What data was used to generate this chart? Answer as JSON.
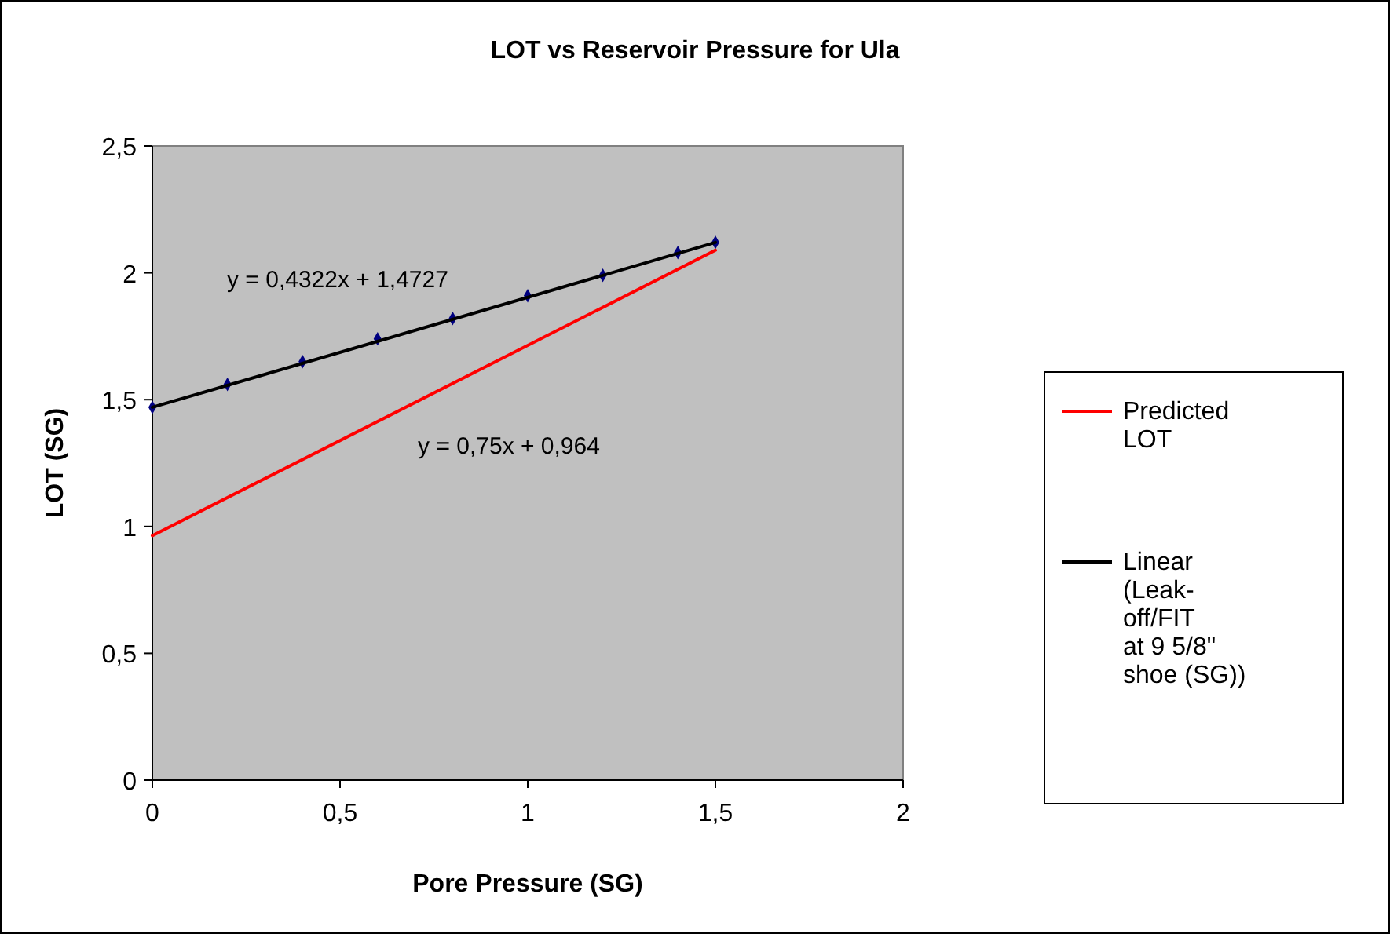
{
  "chart_data": {
    "type": "line",
    "title": "LOT vs Reservoir Pressure for Ula",
    "xlabel": "Pore Pressure (SG)",
    "ylabel": "LOT (SG)",
    "xlim": [
      0,
      2
    ],
    "xticks": [
      0,
      {
        "value": 0.5,
        "label": "0,5"
      },
      1,
      {
        "value": 1.5,
        "label": "1,5"
      },
      2
    ],
    "ylim": [
      0,
      2.5
    ],
    "yticks": [
      0,
      {
        "value": 0.5,
        "label": "0,5"
      },
      1,
      {
        "value": 1.5,
        "label": "1,5"
      },
      2,
      {
        "value": 2.5,
        "label": "2,5"
      }
    ],
    "grid": false,
    "legend": "right",
    "line_style": "solid",
    "series": [
      {
        "type": "scatter",
        "color": "#000080",
        "marker": "diamond",
        "x": [
          0,
          0.2,
          0.4,
          0.6,
          0.8,
          1,
          1.2,
          1.4,
          1.5
        ],
        "values": [
          1.47,
          1.56,
          1.65,
          1.74,
          1.82,
          1.91,
          1.99,
          2.08,
          2.12
        ]
      },
      {
        "name": "Predicted LOT",
        "color": "#ff0000",
        "marker": "none",
        "x": [
          0,
          1.5
        ],
        "values": [
          0.964,
          2.089
        ]
      },
      {
        "name": "Linear (Leak-off/FIT at 9 5/8\" shoe (SG))",
        "color": "#000000",
        "marker": "none",
        "x": [
          0,
          1.5
        ],
        "values": [
          1.47,
          2.12
        ]
      }
    ],
    "annotations": [
      "y = 0,4322x + 1,4727",
      "y = 0,75x + 0,964"
    ]
  }
}
